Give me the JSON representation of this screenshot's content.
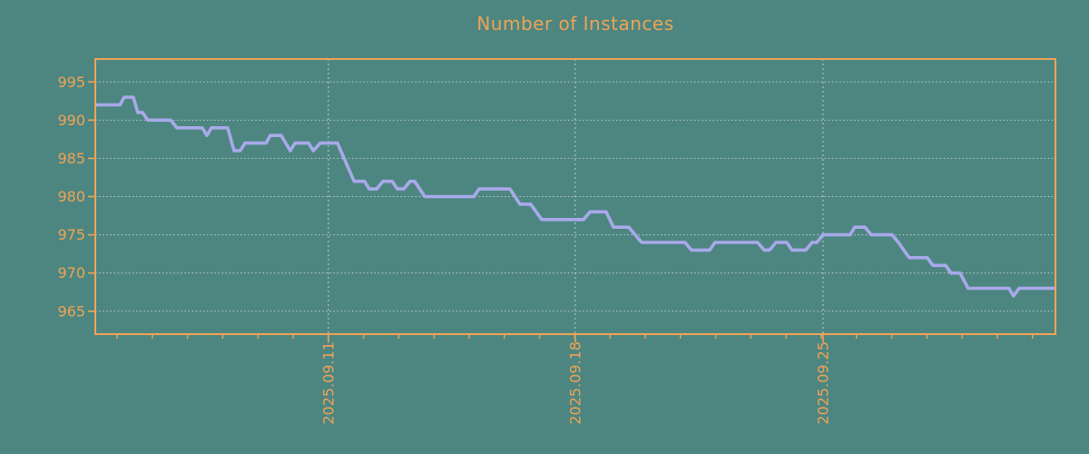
{
  "style": {
    "background": "#4d8681",
    "accent": "#f0a355",
    "line_color": "#a9a9ea",
    "grid_color": "#e4e4e4"
  },
  "chart_data": {
    "type": "line",
    "title": "Number of Instances",
    "xlabel": "",
    "ylabel": "",
    "legend": "none",
    "grid": "both",
    "ylim": [
      962,
      998
    ],
    "xlim_days": [
      0,
      27.27
    ],
    "y_ticks": [
      965,
      970,
      975,
      980,
      985,
      990,
      995
    ],
    "x_major_ticks": [
      {
        "t": 6.62,
        "label": "2025.09.11"
      },
      {
        "t": 13.63,
        "label": "2025.09.18"
      },
      {
        "t": 20.67,
        "label": "2025.09.25"
      }
    ],
    "x_minor_tick_start": 0.62,
    "x_minor_tick_step": 1,
    "x_minor_tick_count": 27,
    "series": [
      {
        "name": "instances",
        "points": [
          [
            0.0,
            992
          ],
          [
            0.7,
            992
          ],
          [
            0.82,
            993
          ],
          [
            1.08,
            993
          ],
          [
            1.21,
            991
          ],
          [
            1.34,
            991
          ],
          [
            1.49,
            990
          ],
          [
            2.14,
            990
          ],
          [
            2.32,
            989
          ],
          [
            3.04,
            989
          ],
          [
            3.17,
            988
          ],
          [
            3.3,
            989
          ],
          [
            3.76,
            989
          ],
          [
            3.94,
            986
          ],
          [
            4.12,
            986
          ],
          [
            4.25,
            987
          ],
          [
            4.85,
            987
          ],
          [
            4.97,
            988
          ],
          [
            5.28,
            988
          ],
          [
            5.54,
            986
          ],
          [
            5.67,
            987
          ],
          [
            6.06,
            987
          ],
          [
            6.19,
            986
          ],
          [
            6.39,
            987
          ],
          [
            6.88,
            987
          ],
          [
            7.35,
            982
          ],
          [
            7.65,
            982
          ],
          [
            7.78,
            981
          ],
          [
            7.99,
            981
          ],
          [
            8.17,
            982
          ],
          [
            8.43,
            982
          ],
          [
            8.58,
            981
          ],
          [
            8.76,
            981
          ],
          [
            8.94,
            982
          ],
          [
            9.07,
            982
          ],
          [
            9.36,
            980
          ],
          [
            10.75,
            980
          ],
          [
            10.9,
            981
          ],
          [
            11.78,
            981
          ],
          [
            12.06,
            979
          ],
          [
            12.37,
            979
          ],
          [
            12.68,
            977
          ],
          [
            13.87,
            977
          ],
          [
            14.05,
            978
          ],
          [
            14.51,
            978
          ],
          [
            14.72,
            976
          ],
          [
            15.15,
            976
          ],
          [
            15.52,
            974
          ],
          [
            16.75,
            974
          ],
          [
            16.93,
            973
          ],
          [
            17.45,
            973
          ],
          [
            17.6,
            974
          ],
          [
            18.81,
            974
          ],
          [
            19.0,
            973
          ],
          [
            19.15,
            973
          ],
          [
            19.33,
            974
          ],
          [
            19.64,
            974
          ],
          [
            19.79,
            973
          ],
          [
            20.18,
            973
          ],
          [
            20.36,
            974
          ],
          [
            20.49,
            974
          ],
          [
            20.67,
            975
          ],
          [
            21.44,
            975
          ],
          [
            21.57,
            976
          ],
          [
            21.86,
            976
          ],
          [
            22.04,
            975
          ],
          [
            22.63,
            975
          ],
          [
            22.81,
            974
          ],
          [
            22.96,
            973
          ],
          [
            23.12,
            972
          ],
          [
            23.63,
            972
          ],
          [
            23.79,
            971
          ],
          [
            24.15,
            971
          ],
          [
            24.3,
            970
          ],
          [
            24.56,
            970
          ],
          [
            24.79,
            968
          ],
          [
            25.95,
            968
          ],
          [
            26.08,
            967
          ],
          [
            26.24,
            968
          ],
          [
            27.27,
            968
          ]
        ]
      }
    ]
  }
}
